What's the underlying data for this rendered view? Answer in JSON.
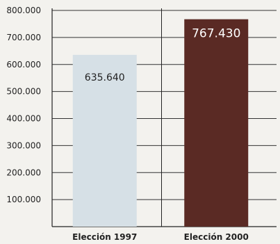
{
  "chart_data": {
    "type": "bar",
    "title": "",
    "xlabel": "",
    "ylabel": "",
    "categories": [
      "Elección 1997",
      "Elección 2000"
    ],
    "values": [
      635640,
      767430
    ],
    "data_labels": [
      "635.640",
      "767.430"
    ],
    "ylim": [
      0,
      800000
    ],
    "yticks": [
      100000,
      200000,
      300000,
      400000,
      500000,
      600000,
      700000,
      800000
    ],
    "ytick_labels": [
      "100.000",
      "200.000",
      "300.000",
      "400.000",
      "500.000",
      "600.000",
      "700.000",
      "800.000"
    ],
    "grid": true,
    "bar_colors": [
      "#d6e0e6",
      "#5a2a24"
    ],
    "label_colors": [
      "#222222",
      "#ffffff"
    ],
    "grid_color": "#333333",
    "legend": "none"
  }
}
